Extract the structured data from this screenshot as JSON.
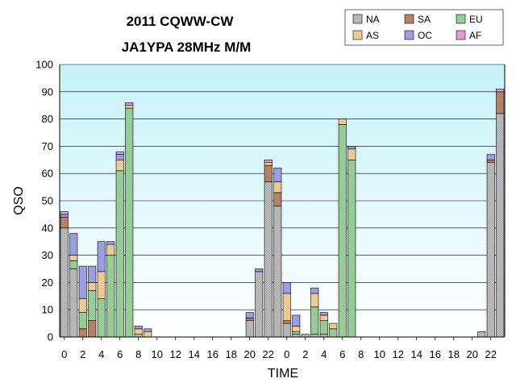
{
  "chart_data": {
    "type": "bar",
    "stacked": true,
    "title": "2011 CQWW-CW",
    "subtitle": "JA1YPA  28MHz M/M",
    "xlabel": "TIME",
    "ylabel": "QSO",
    "ylim": [
      0,
      100
    ],
    "yticks": [
      0,
      10,
      20,
      30,
      40,
      50,
      60,
      70,
      80,
      90,
      100
    ],
    "grid": true,
    "legend_position": "top-right",
    "categories": [
      "0",
      "1",
      "2",
      "3",
      "4",
      "5",
      "6",
      "7",
      "8",
      "9",
      "10",
      "11",
      "12",
      "13",
      "14",
      "15",
      "16",
      "17",
      "18",
      "19",
      "20",
      "21",
      "22",
      "23",
      "0",
      "1",
      "2",
      "3",
      "4",
      "5",
      "6",
      "7",
      "8",
      "9",
      "10",
      "11",
      "12",
      "13",
      "14",
      "15",
      "16",
      "17",
      "18",
      "19",
      "20",
      "21",
      "22",
      "23"
    ],
    "xtick_labels": [
      "0",
      "2",
      "4",
      "6",
      "8",
      "10",
      "12",
      "14",
      "16",
      "18",
      "20",
      "22",
      "0",
      "2",
      "4",
      "6",
      "8",
      "10",
      "12",
      "14",
      "16",
      "18",
      "20",
      "22"
    ],
    "series": [
      {
        "name": "NA",
        "color": "#c0c0c0",
        "values": [
          40,
          25,
          0,
          0,
          0,
          0,
          0,
          0,
          1,
          0,
          0,
          0,
          0,
          0,
          0,
          0,
          0,
          0,
          0,
          0,
          6,
          24,
          57,
          48,
          5,
          1,
          1,
          1,
          1,
          0,
          0,
          0,
          0,
          0,
          0,
          0,
          0,
          0,
          0,
          0,
          0,
          0,
          0,
          0,
          0,
          2,
          64,
          82
        ]
      },
      {
        "name": "SA",
        "color": "#c0896b",
        "values": [
          4,
          0,
          3,
          6,
          0,
          0,
          0,
          0,
          0,
          0,
          0,
          0,
          0,
          0,
          0,
          0,
          0,
          0,
          0,
          0,
          1,
          0,
          6,
          5,
          1,
          0,
          0,
          0,
          0,
          0,
          0,
          0,
          0,
          0,
          0,
          0,
          0,
          0,
          0,
          0,
          0,
          0,
          0,
          0,
          0,
          0,
          1,
          8
        ]
      },
      {
        "name": "EU",
        "color": "#9fd89f",
        "values": [
          0,
          3,
          6,
          11,
          14,
          30,
          61,
          84,
          0,
          0,
          0,
          0,
          0,
          0,
          0,
          0,
          0,
          0,
          0,
          0,
          0,
          0,
          0,
          0,
          0,
          1,
          0,
          10,
          5,
          3,
          78,
          65,
          0,
          0,
          0,
          0,
          0,
          0,
          0,
          0,
          0,
          0,
          0,
          0,
          0,
          0,
          0,
          0
        ]
      },
      {
        "name": "AS",
        "color": "#ffd699",
        "values": [
          0,
          2,
          5,
          3,
          10,
          4,
          4,
          1,
          2,
          2,
          0,
          0,
          0,
          0,
          0,
          0,
          0,
          0,
          0,
          0,
          0,
          0,
          1,
          4,
          10,
          2,
          0,
          5,
          2,
          2,
          2,
          4,
          0,
          0,
          0,
          0,
          0,
          0,
          0,
          0,
          0,
          0,
          0,
          0,
          0,
          0,
          0,
          0
        ]
      },
      {
        "name": "OC",
        "color": "#a6a6f0",
        "values": [
          1,
          8,
          12,
          6,
          11,
          1,
          2,
          0,
          1,
          1,
          0,
          0,
          0,
          0,
          0,
          0,
          0,
          0,
          0,
          0,
          2,
          1,
          0,
          5,
          4,
          4,
          0,
          2,
          1,
          0,
          0,
          1,
          0,
          0,
          0,
          0,
          0,
          0,
          0,
          0,
          0,
          0,
          0,
          0,
          0,
          0,
          2,
          0
        ]
      },
      {
        "name": "AF",
        "color": "#f0a6e6",
        "values": [
          1,
          0,
          0,
          0,
          0,
          0,
          1,
          1,
          0,
          0,
          0,
          0,
          0,
          0,
          0,
          0,
          0,
          0,
          0,
          0,
          0,
          0,
          1,
          0,
          0,
          0,
          0,
          0,
          0,
          0,
          0,
          0,
          0,
          0,
          0,
          0,
          0,
          0,
          0,
          0,
          0,
          0,
          0,
          0,
          0,
          0,
          0,
          1
        ]
      }
    ]
  }
}
